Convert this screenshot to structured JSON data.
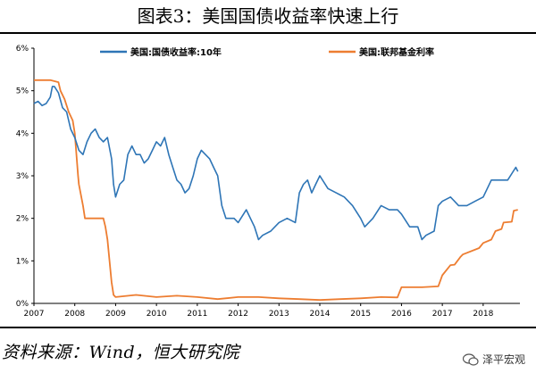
{
  "figure": {
    "title": "图表3：美国国债收益率快速上行",
    "source": "资料来源：Wind，恒大研究院",
    "watermark": "泽平宏观"
  },
  "chart_data": {
    "type": "line",
    "xlabel": "",
    "ylabel": "",
    "xlim": [
      2007,
      2018.9
    ],
    "ylim": [
      0,
      6
    ],
    "x_ticks": [
      "2007",
      "2008",
      "2009",
      "2010",
      "2011",
      "2012",
      "2013",
      "2014",
      "2015",
      "2016",
      "2017",
      "2018"
    ],
    "y_ticks": [
      "0%",
      "1%",
      "2%",
      "3%",
      "4%",
      "5%",
      "6%"
    ],
    "legend": "top",
    "grid": false,
    "colors": {
      "treasury": "#2e75b6",
      "fed": "#ed7d31"
    },
    "series": [
      {
        "name": "美国:国债收益率:10年",
        "x": [
          2007.0,
          2007.1,
          2007.2,
          2007.3,
          2007.4,
          2007.45,
          2007.5,
          2007.6,
          2007.7,
          2007.8,
          2007.9,
          2008.0,
          2008.1,
          2008.2,
          2008.3,
          2008.4,
          2008.5,
          2008.6,
          2008.7,
          2008.8,
          2008.9,
          2008.95,
          2009.0,
          2009.1,
          2009.2,
          2009.3,
          2009.4,
          2009.5,
          2009.6,
          2009.7,
          2009.8,
          2009.9,
          2010.0,
          2010.1,
          2010.2,
          2010.3,
          2010.4,
          2010.5,
          2010.6,
          2010.7,
          2010.8,
          2010.9,
          2011.0,
          2011.1,
          2011.2,
          2011.3,
          2011.4,
          2011.5,
          2011.6,
          2011.7,
          2011.8,
          2011.9,
          2012.0,
          2012.2,
          2012.4,
          2012.5,
          2012.6,
          2012.8,
          2013.0,
          2013.2,
          2013.4,
          2013.5,
          2013.6,
          2013.7,
          2013.8,
          2013.9,
          2014.0,
          2014.2,
          2014.4,
          2014.6,
          2014.8,
          2015.0,
          2015.1,
          2015.3,
          2015.5,
          2015.7,
          2015.9,
          2016.0,
          2016.2,
          2016.4,
          2016.5,
          2016.6,
          2016.8,
          2016.9,
          2017.0,
          2017.2,
          2017.4,
          2017.6,
          2017.8,
          2018.0,
          2018.2,
          2018.4,
          2018.6,
          2018.8,
          2018.85
        ],
        "y": [
          4.7,
          4.75,
          4.65,
          4.7,
          4.85,
          5.1,
          5.1,
          4.95,
          4.6,
          4.5,
          4.1,
          3.9,
          3.6,
          3.5,
          3.8,
          4.0,
          4.1,
          3.9,
          3.8,
          3.9,
          3.4,
          2.8,
          2.5,
          2.8,
          2.9,
          3.5,
          3.7,
          3.5,
          3.5,
          3.3,
          3.4,
          3.6,
          3.8,
          3.7,
          3.9,
          3.5,
          3.2,
          2.9,
          2.8,
          2.6,
          2.7,
          3.0,
          3.4,
          3.6,
          3.5,
          3.4,
          3.2,
          3.0,
          2.3,
          2.0,
          2.0,
          2.0,
          1.9,
          2.2,
          1.8,
          1.5,
          1.6,
          1.7,
          1.9,
          2.0,
          1.9,
          2.6,
          2.8,
          2.9,
          2.6,
          2.8,
          3.0,
          2.7,
          2.6,
          2.5,
          2.3,
          2.0,
          1.8,
          2.0,
          2.3,
          2.2,
          2.2,
          2.1,
          1.8,
          1.8,
          1.5,
          1.6,
          1.7,
          2.3,
          2.4,
          2.5,
          2.3,
          2.3,
          2.4,
          2.5,
          2.9,
          2.9,
          2.9,
          3.2,
          3.1
        ]
      },
      {
        "name": "美国:联邦基金利率",
        "x": [
          2007.0,
          2007.2,
          2007.4,
          2007.6,
          2007.65,
          2007.75,
          2007.85,
          2007.95,
          2008.0,
          2008.08,
          2008.1,
          2008.2,
          2008.25,
          2008.35,
          2008.5,
          2008.7,
          2008.75,
          2008.8,
          2008.85,
          2008.9,
          2008.95,
          2009.0,
          2009.5,
          2010.0,
          2010.5,
          2011.0,
          2011.5,
          2012.0,
          2012.5,
          2013.0,
          2013.5,
          2014.0,
          2014.5,
          2015.0,
          2015.5,
          2015.9,
          2016.0,
          2016.5,
          2016.9,
          2017.0,
          2017.2,
          2017.3,
          2017.45,
          2017.5,
          2017.9,
          2018.0,
          2018.2,
          2018.3,
          2018.45,
          2018.5,
          2018.7,
          2018.75,
          2018.85
        ],
        "y": [
          5.25,
          5.25,
          5.25,
          5.2,
          5.0,
          4.8,
          4.5,
          4.3,
          4.0,
          3.0,
          2.8,
          2.3,
          2.0,
          2.0,
          2.0,
          2.0,
          1.8,
          1.5,
          1.0,
          0.5,
          0.2,
          0.15,
          0.2,
          0.15,
          0.18,
          0.15,
          0.1,
          0.15,
          0.15,
          0.12,
          0.1,
          0.08,
          0.1,
          0.12,
          0.15,
          0.14,
          0.38,
          0.38,
          0.4,
          0.66,
          0.9,
          0.91,
          1.1,
          1.15,
          1.3,
          1.42,
          1.5,
          1.7,
          1.75,
          1.9,
          1.92,
          2.18,
          2.2
        ]
      }
    ]
  }
}
